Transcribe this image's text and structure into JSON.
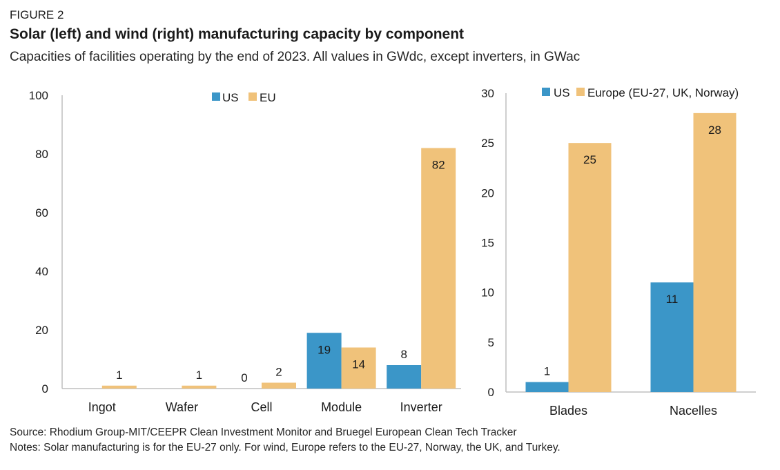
{
  "figure_label": "FIGURE 2",
  "title": "Solar (left) and wind (right) manufacturing capacity by component",
  "subtitle": "Capacities of facilities operating by the end of 2023. All values in GWdc, except inverters, in GWac",
  "source": "Source: Rhodium Group-MIT/CEEPR Clean Investment Monitor and Bruegel European Clean Tech Tracker",
  "notes": "Notes: Solar manufacturing is for the EU-27 only. For wind, Europe refers to the EU-27, Norway, the UK, and Turkey.",
  "colors": {
    "us": "#3b96c8",
    "eu": "#f0c27a",
    "axis": "#bfbfbf"
  },
  "chart_data": [
    {
      "type": "bar",
      "categories": [
        "Ingot",
        "Wafer",
        "Cell",
        "Module",
        "Inverter"
      ],
      "series": [
        {
          "name": "US",
          "values": [
            null,
            null,
            0,
            19,
            8
          ],
          "labels": [
            "",
            "",
            "0",
            "19",
            "8"
          ]
        },
        {
          "name": "EU",
          "values": [
            1,
            1,
            2,
            14,
            82
          ],
          "labels": [
            "1",
            "1",
            "2",
            "14",
            "82"
          ]
        }
      ],
      "ylim": [
        0,
        100
      ],
      "yticks": [
        0,
        20,
        40,
        60,
        80,
        100
      ],
      "legend": "top-center",
      "grid": false
    },
    {
      "type": "bar",
      "categories": [
        "Blades",
        "Nacelles"
      ],
      "series": [
        {
          "name": "US",
          "values": [
            1,
            11
          ],
          "labels": [
            "1",
            "11"
          ]
        },
        {
          "name": "Europe (EU-27, UK, Norway)",
          "values": [
            25,
            28
          ],
          "labels": [
            "25",
            "28"
          ]
        }
      ],
      "ylim": [
        0,
        30
      ],
      "yticks": [
        0,
        5,
        10,
        15,
        20,
        25,
        30
      ],
      "legend": "top",
      "grid": false
    }
  ]
}
